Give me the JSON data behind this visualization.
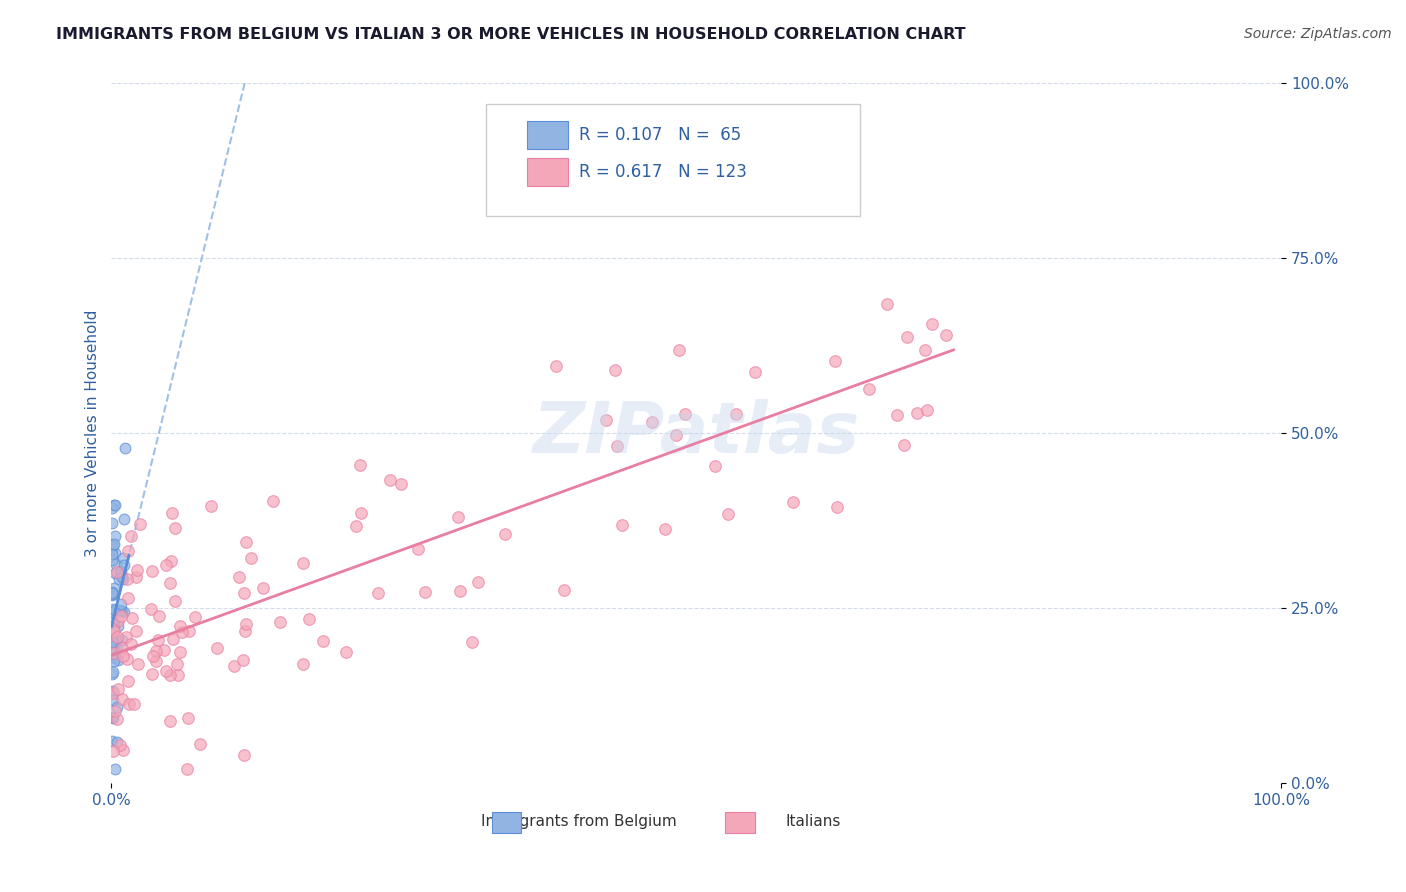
{
  "title": "IMMIGRANTS FROM BELGIUM VS ITALIAN 3 OR MORE VEHICLES IN HOUSEHOLD CORRELATION CHART",
  "source": "Source: ZipAtlas.com",
  "ylabel": "3 or more Vehicles in Household",
  "xlim": [
    0.0,
    1.0
  ],
  "ylim": [
    0.0,
    1.0
  ],
  "legend_labels": [
    "Immigrants from Belgium",
    "Italians"
  ],
  "watermark": "ZIPatlas",
  "blue_color": "#92b4e3",
  "pink_color": "#f4a7b9",
  "blue_line_color": "#5b8dd9",
  "pink_line_color": "#e87ea1",
  "blue_dash_color": "#a0c0e8",
  "title_color": "#1a1a2e",
  "axis_label_color": "#3060a0",
  "tick_color": "#3060a0",
  "grid_color": "#d0d8e8",
  "background_color": "#ffffff",
  "belgium_R": 0.107,
  "italian_R": 0.617,
  "belgium_N": 65,
  "italian_N": 123
}
